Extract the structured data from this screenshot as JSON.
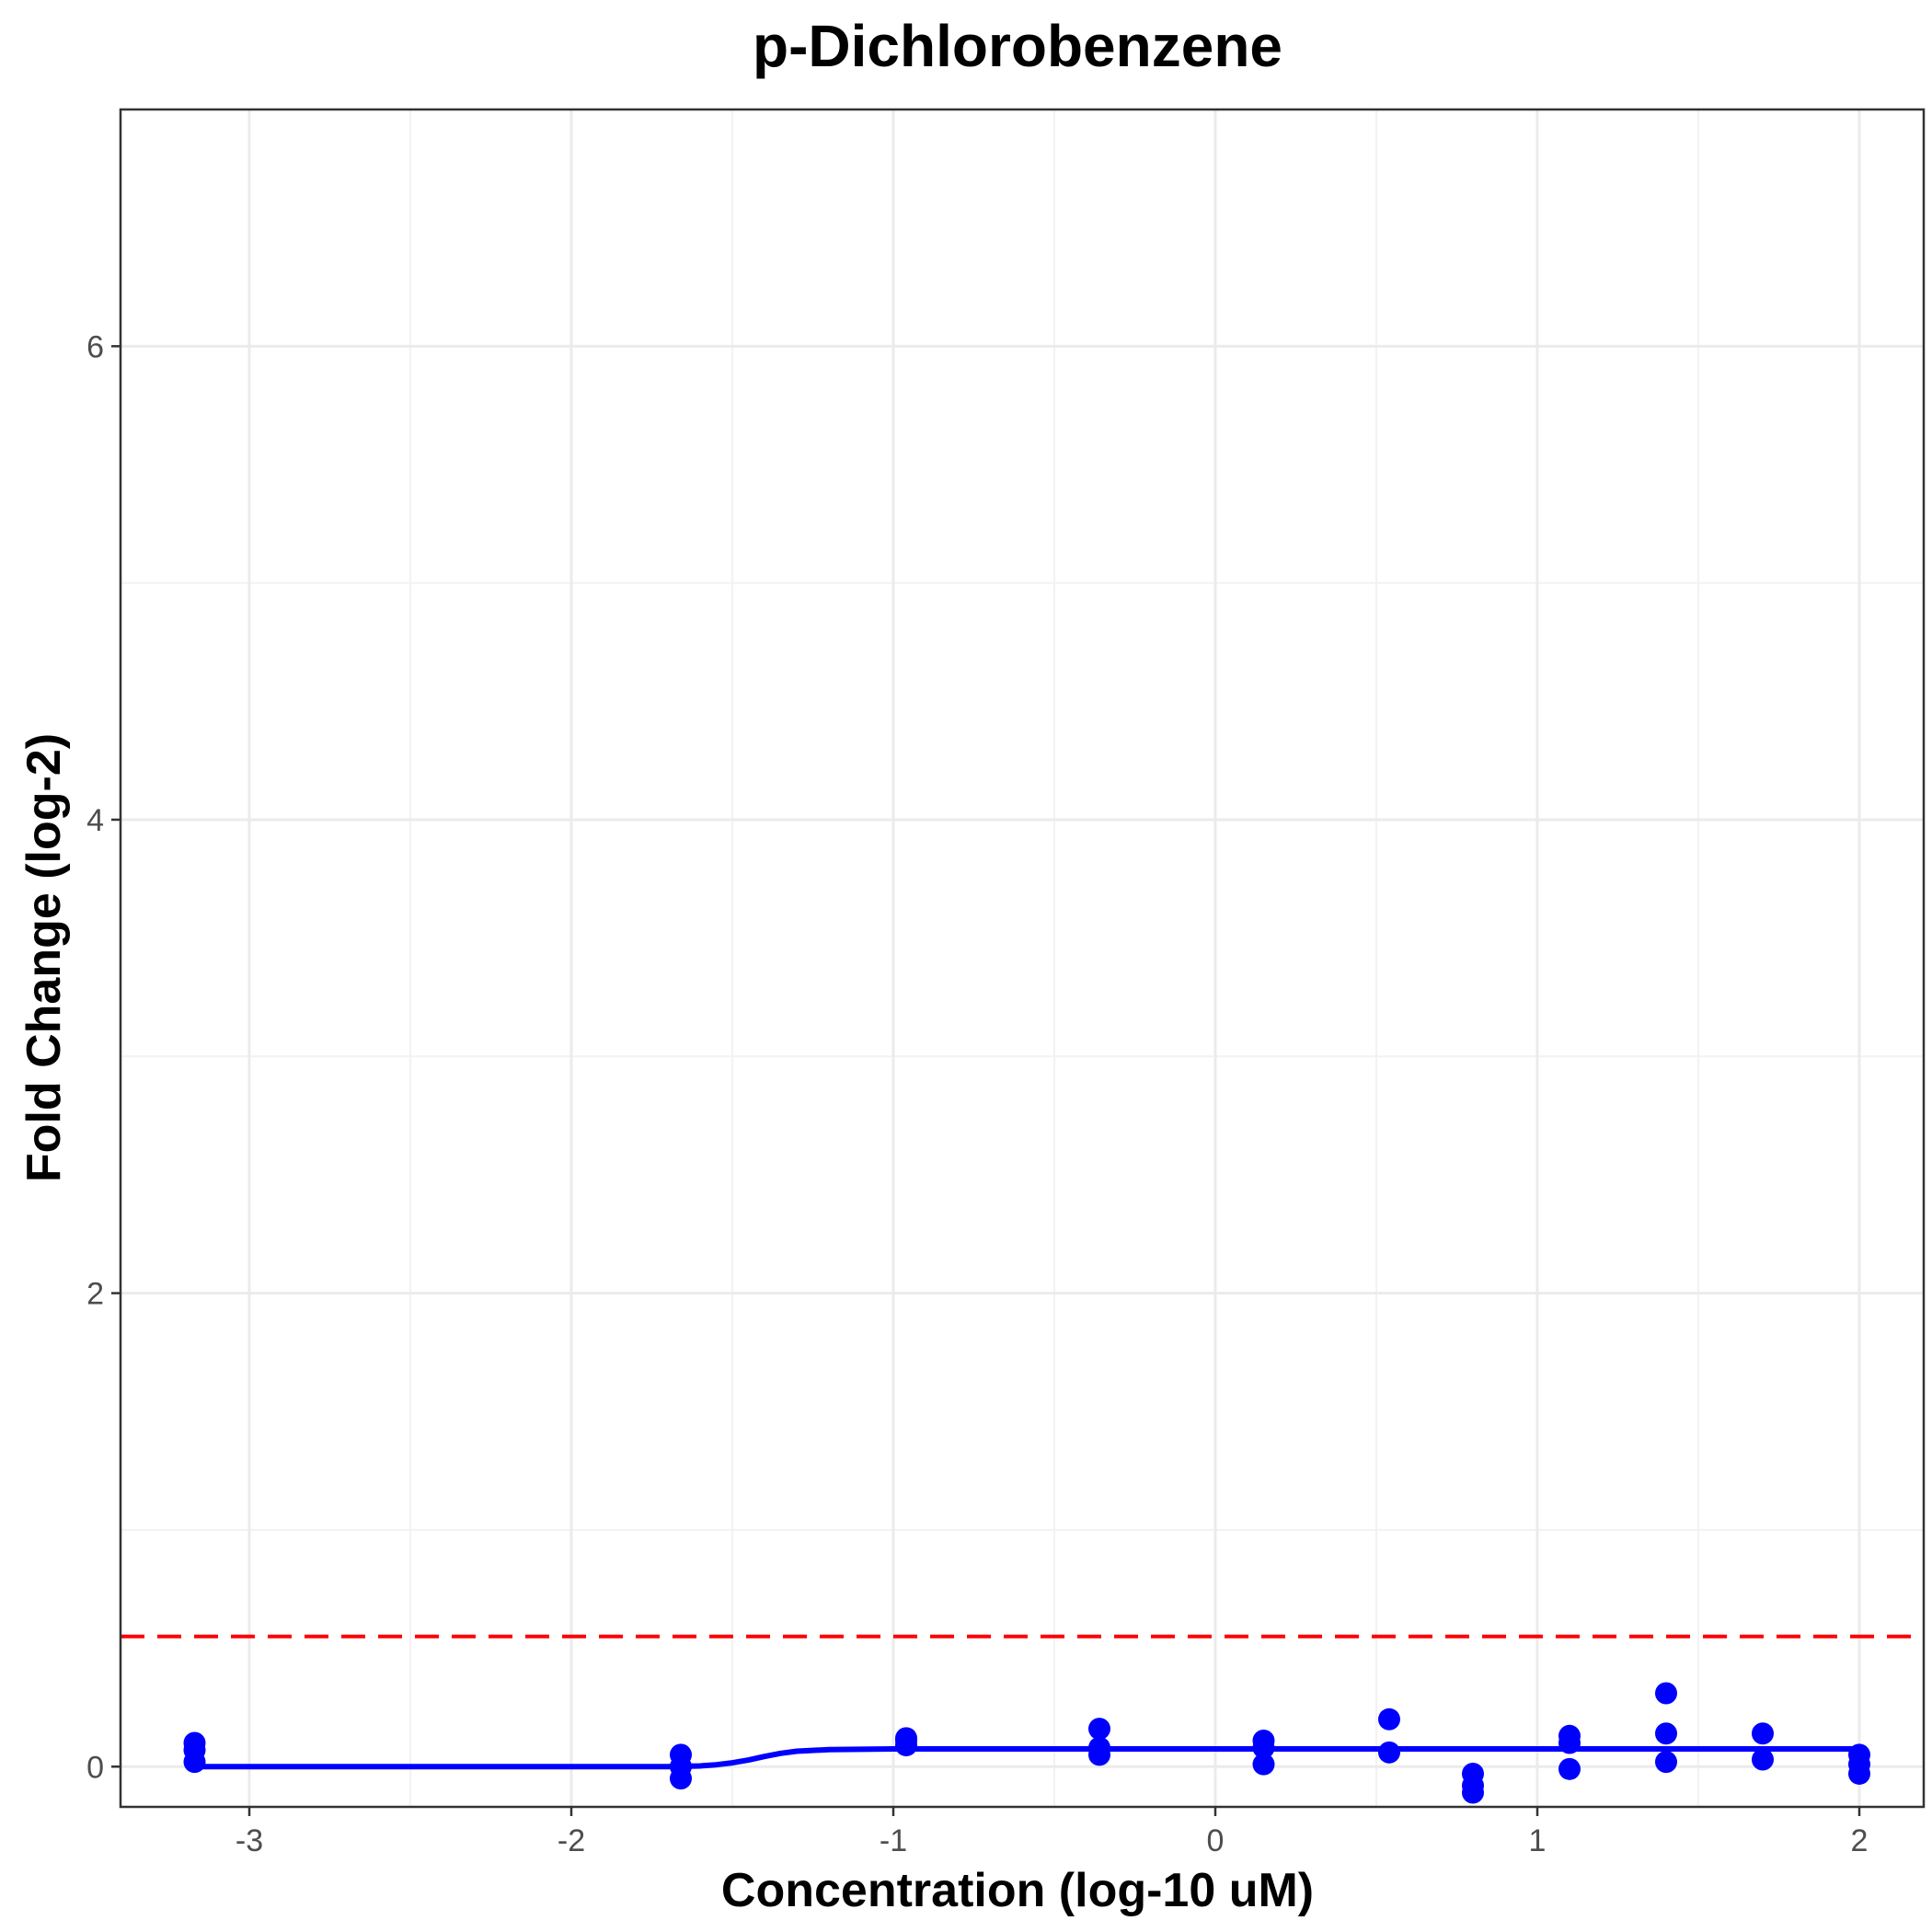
{
  "chart_data": {
    "type": "scatter",
    "title": "p-Dichlorobenzene",
    "xlabel": "Concentration (log-10 uM)",
    "ylabel": "Fold Change (log-2)",
    "xlim": [
      -3.4,
      2.2
    ],
    "ylim": [
      -0.17,
      7.0
    ],
    "x_ticks": [
      -3,
      -2,
      -1,
      0,
      1,
      2
    ],
    "x_tick_labels": [
      "-3",
      "-2",
      "-1",
      "0",
      "1",
      "2"
    ],
    "y_ticks": [
      0,
      2,
      4,
      6
    ],
    "y_tick_labels": [
      "0",
      "2",
      "4",
      "6"
    ],
    "grid": true,
    "point_color": "#0000FF",
    "fit_color": "#0000FF",
    "threshold_color": "#FF0000",
    "threshold": 0.55,
    "points": [
      {
        "x": -3.17,
        "y": 0.1
      },
      {
        "x": -3.17,
        "y": 0.07
      },
      {
        "x": -3.17,
        "y": 0.02
      },
      {
        "x": -1.66,
        "y": 0.05
      },
      {
        "x": -1.66,
        "y": 0.0
      },
      {
        "x": -1.66,
        "y": -0.05
      },
      {
        "x": -0.96,
        "y": 0.12
      },
      {
        "x": -0.96,
        "y": 0.11
      },
      {
        "x": -0.96,
        "y": 0.09
      },
      {
        "x": -0.36,
        "y": 0.16
      },
      {
        "x": -0.36,
        "y": 0.08
      },
      {
        "x": -0.36,
        "y": 0.05
      },
      {
        "x": 0.15,
        "y": 0.11
      },
      {
        "x": 0.15,
        "y": 0.08
      },
      {
        "x": 0.15,
        "y": 0.01
      },
      {
        "x": 0.54,
        "y": 0.2
      },
      {
        "x": 0.54,
        "y": 0.06
      },
      {
        "x": 0.8,
        "y": -0.03
      },
      {
        "x": 0.8,
        "y": -0.08
      },
      {
        "x": 0.8,
        "y": -0.11
      },
      {
        "x": 1.1,
        "y": 0.13
      },
      {
        "x": 1.1,
        "y": 0.1
      },
      {
        "x": 1.1,
        "y": -0.01
      },
      {
        "x": 1.4,
        "y": 0.31
      },
      {
        "x": 1.4,
        "y": 0.14
      },
      {
        "x": 1.4,
        "y": 0.02
      },
      {
        "x": 1.7,
        "y": 0.14
      },
      {
        "x": 1.7,
        "y": 0.03
      },
      {
        "x": 2.0,
        "y": 0.05
      },
      {
        "x": 2.0,
        "y": 0.01
      },
      {
        "x": 2.0,
        "y": -0.03
      }
    ],
    "fit_curve": {
      "x": [
        -3.17,
        -2.0,
        -1.8,
        -1.7,
        -1.6,
        -1.55,
        -1.5,
        -1.45,
        -1.4,
        -1.35,
        -1.3,
        -1.2,
        -1.0,
        -0.5,
        0.0,
        0.5,
        1.0,
        1.5,
        2.0
      ],
      "y": [
        0.0,
        0.0,
        0.0,
        0.0,
        0.003,
        0.008,
        0.016,
        0.028,
        0.043,
        0.056,
        0.065,
        0.072,
        0.075,
        0.075,
        0.075,
        0.075,
        0.075,
        0.075,
        0.075
      ]
    }
  }
}
